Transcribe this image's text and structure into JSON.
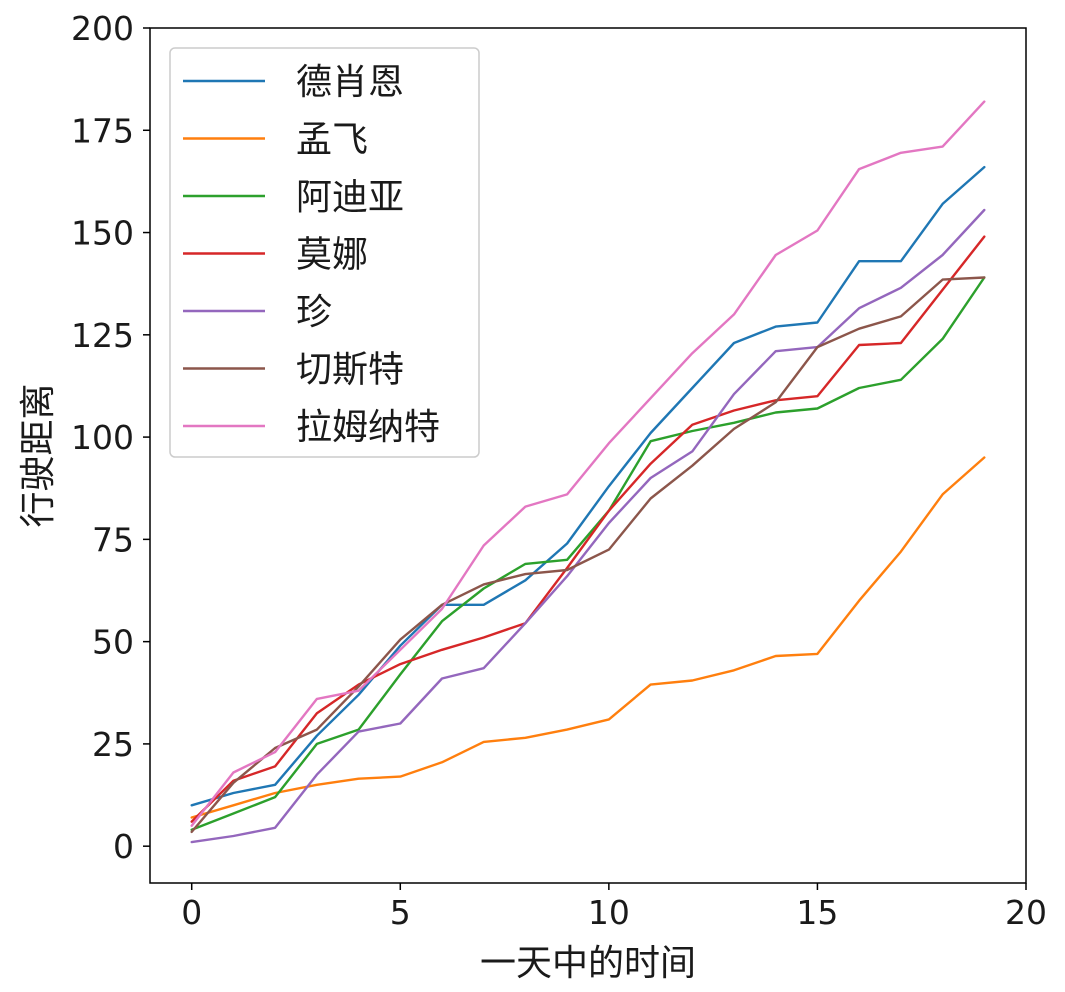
{
  "chart_data": {
    "type": "line",
    "xlabel": "一天中的时间",
    "ylabel": "行驶距离",
    "xlim": [
      -1,
      20
    ],
    "ylim": [
      -9,
      200
    ],
    "xticks": [
      0,
      5,
      10,
      15,
      20
    ],
    "yticks": [
      0,
      25,
      50,
      75,
      100,
      125,
      150,
      175,
      200
    ],
    "grid": false,
    "legend_position": "top-left",
    "x": [
      0,
      1,
      2,
      3,
      4,
      5,
      6,
      7,
      8,
      9,
      10,
      11,
      12,
      13,
      14,
      15,
      16,
      17,
      18,
      19
    ],
    "series": [
      {
        "name": "德肖恩",
        "color": "#1f77b4",
        "values": [
          10,
          13,
          15,
          27,
          37,
          49,
          59,
          59,
          65,
          74,
          88,
          101,
          112,
          123,
          127,
          128,
          143,
          143,
          157,
          166
        ]
      },
      {
        "name": "孟飞",
        "color": "#ff7f0e",
        "values": [
          7,
          10,
          13,
          15,
          16.5,
          17,
          20.5,
          25.5,
          26.5,
          28.5,
          31,
          39.5,
          40.5,
          43,
          46.5,
          47,
          60,
          72,
          86,
          95
        ]
      },
      {
        "name": "阿迪亚",
        "color": "#2ca02c",
        "values": [
          4,
          8,
          12,
          25,
          28.5,
          42,
          55,
          63,
          69,
          70,
          82,
          99,
          101.5,
          103.5,
          106,
          107,
          112,
          114,
          124,
          139
        ]
      },
      {
        "name": "莫娜",
        "color": "#d62728",
        "values": [
          6,
          16,
          19.5,
          32.5,
          39.5,
          44.5,
          48,
          51,
          54.5,
          68,
          82,
          93.5,
          103,
          106.5,
          109,
          110,
          122.5,
          123,
          136,
          149
        ]
      },
      {
        "name": "珍",
        "color": "#9467bd",
        "values": [
          1,
          2.5,
          4.5,
          17.5,
          28,
          30,
          41,
          43.5,
          54.5,
          66,
          79,
          90,
          96.5,
          110.5,
          121,
          122,
          131.5,
          136.5,
          144.5,
          155.5
        ]
      },
      {
        "name": "切斯特",
        "color": "#8c564b",
        "values": [
          3.5,
          15.5,
          24,
          28.5,
          39,
          50.5,
          59,
          64,
          66.5,
          67.5,
          72.5,
          85,
          93,
          102,
          108.5,
          122,
          126.5,
          129.5,
          138.5,
          139
        ]
      },
      {
        "name": "拉姆纳特",
        "color": "#e377c2",
        "values": [
          5,
          18,
          23,
          36,
          38,
          48,
          58,
          73.5,
          83,
          86,
          98.5,
          109.5,
          120.5,
          130,
          144.5,
          150.5,
          165.5,
          169.5,
          171,
          182
        ]
      }
    ]
  }
}
